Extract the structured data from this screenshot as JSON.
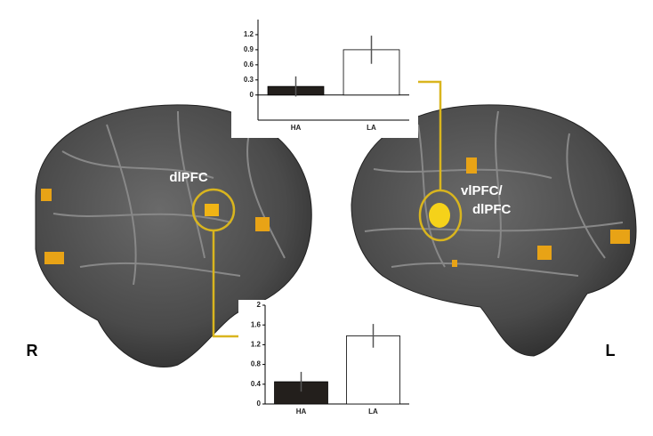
{
  "chart_data": [
    {
      "type": "bar",
      "categories": [
        "HA",
        "LA"
      ],
      "values": [
        0.17,
        0.9
      ],
      "errors": [
        0.2,
        0.28
      ],
      "colors": [
        "#231f1c",
        "#ffffff"
      ],
      "ylim": [
        -0.5,
        1.5
      ],
      "yticks": [
        0,
        0.3,
        0.6,
        0.9,
        1.2
      ]
    },
    {
      "type": "bar",
      "categories": [
        "HA",
        "LA"
      ],
      "values": [
        0.45,
        1.38
      ],
      "errors": [
        0.2,
        0.24
      ],
      "colors": [
        "#231f1c",
        "#ffffff"
      ],
      "ylim": [
        0,
        2
      ],
      "yticks": [
        0,
        0.4,
        0.8,
        1.2,
        1.6,
        2
      ]
    }
  ],
  "labels": {
    "right_region": "dlPFC",
    "left_region_1": "vlPFC/",
    "left_region_2": "dlPFC",
    "right_side": "R",
    "left_side": "L"
  }
}
